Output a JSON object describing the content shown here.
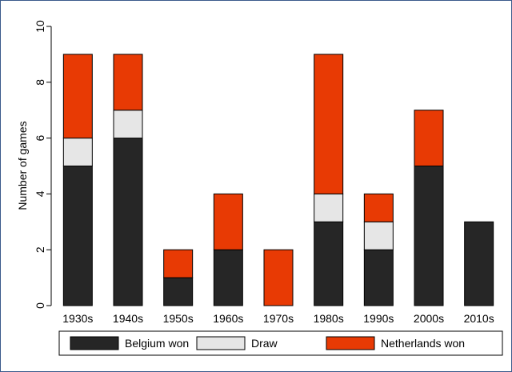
{
  "chart_data": {
    "type": "bar",
    "stacked": true,
    "title": "",
    "xlabel": "",
    "ylabel": "Number of games",
    "ylim": [
      0,
      10
    ],
    "yticks": [
      0,
      2,
      4,
      6,
      8,
      10
    ],
    "grid": false,
    "legend_position": "bottom",
    "categories": [
      "1930s",
      "1940s",
      "1950s",
      "1960s",
      "1970s",
      "1980s",
      "1990s",
      "2000s",
      "2010s"
    ],
    "series": [
      {
        "name": "Belgium won",
        "color": "#262626",
        "values": [
          5,
          6,
          1,
          2,
          0,
          3,
          2,
          5,
          3
        ]
      },
      {
        "name": "Draw",
        "color": "#e6e6e6",
        "values": [
          1,
          1,
          0,
          0,
          0,
          1,
          1,
          0,
          0
        ]
      },
      {
        "name": "Netherlands won",
        "color": "#e83a04",
        "values": [
          3,
          2,
          1,
          2,
          2,
          5,
          1,
          2,
          0
        ]
      }
    ]
  }
}
